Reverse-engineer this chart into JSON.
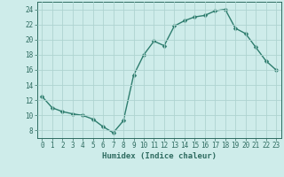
{
  "xlabel": "Humidex (Indice chaleur)",
  "x": [
    0,
    1,
    2,
    3,
    4,
    5,
    6,
    7,
    8,
    9,
    10,
    11,
    12,
    13,
    14,
    15,
    16,
    17,
    18,
    19,
    20,
    21,
    22,
    23
  ],
  "y": [
    12.5,
    11.0,
    10.5,
    10.2,
    10.0,
    9.5,
    8.5,
    7.7,
    9.3,
    15.3,
    18.0,
    19.8,
    19.2,
    21.8,
    22.5,
    23.0,
    23.2,
    23.8,
    24.0,
    21.5,
    20.8,
    19.0,
    17.2,
    16.0
  ],
  "line_color": "#2e7d6e",
  "marker": "D",
  "marker_size": 2.5,
  "bg_color": "#ceecea",
  "grid_color": "#aed4d0",
  "label_color": "#2e6b60",
  "xlim": [
    -0.5,
    23.5
  ],
  "ylim": [
    7,
    25
  ],
  "yticks": [
    8,
    10,
    12,
    14,
    16,
    18,
    20,
    22,
    24
  ],
  "xticks": [
    0,
    1,
    2,
    3,
    4,
    5,
    6,
    7,
    8,
    9,
    10,
    11,
    12,
    13,
    14,
    15,
    16,
    17,
    18,
    19,
    20,
    21,
    22,
    23
  ],
  "linewidth": 1.0,
  "axis_fontsize": 6.5,
  "tick_fontsize": 5.5
}
